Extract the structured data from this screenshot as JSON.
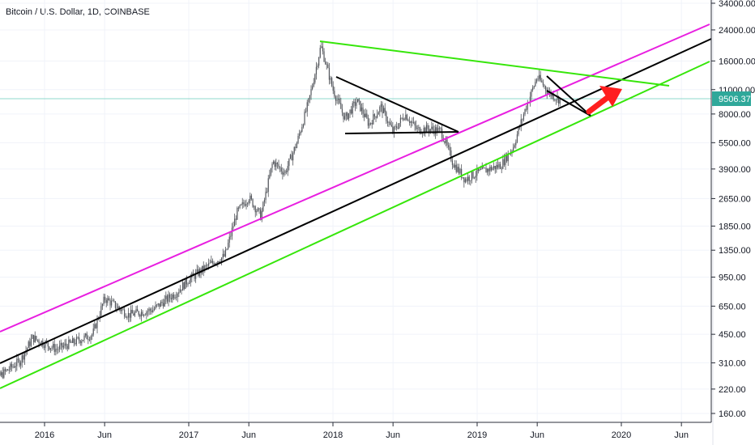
{
  "title": "Bitcoin / U.S. Dollar, 1D, COINBASE",
  "last_price": "9506.37",
  "colors": {
    "candles": "#53565c",
    "pink_channel": "#e81fe0",
    "black_midline": "#000000",
    "green_lines": "#36e60a",
    "arrow": "#ff1f1f",
    "price_line": "#8fd8cc",
    "price_badge": "#2fa89a"
  },
  "chart_data": {
    "type": "candlestick",
    "title": "Bitcoin / U.S. Dollar, 1D, COINBASE",
    "scale": "log",
    "y_ticks": [
      "34000.00",
      "24000.00",
      "16000.00",
      "11000.00",
      "8000.00",
      "5500.00",
      "3900.00",
      "2650.00",
      "1850.00",
      "1350.00",
      "950.00",
      "650.00",
      "450.00",
      "310.00",
      "220.00",
      "160.00"
    ],
    "x_ticks": [
      "2016",
      "Jun",
      "2017",
      "Jun",
      "2018",
      "Jun",
      "2019",
      "Jun",
      "2020",
      "Jun"
    ],
    "current_price": 9506.37,
    "price_path": [
      [
        "2015-08",
        225
      ],
      [
        "2015-11",
        320
      ],
      [
        "2015-12",
        430
      ],
      [
        "2016-02",
        370
      ],
      [
        "2016-05",
        450
      ],
      [
        "2016-06",
        720
      ],
      [
        "2016-08",
        580
      ],
      [
        "2016-10",
        620
      ],
      [
        "2016-12",
        780
      ],
      [
        "2017-01",
        920
      ],
      [
        "2017-03",
        1150
      ],
      [
        "2017-04",
        1250
      ],
      [
        "2017-05",
        2200
      ],
      [
        "2017-06",
        2700
      ],
      [
        "2017-07",
        2100
      ],
      [
        "2017-08",
        4300
      ],
      [
        "2017-09",
        3700
      ],
      [
        "2017-10",
        5500
      ],
      [
        "2017-11",
        9500
      ],
      [
        "2017-12",
        19500
      ],
      [
        "2018-01",
        11000
      ],
      [
        "2018-02",
        7500
      ],
      [
        "2018-03",
        9500
      ],
      [
        "2018-04",
        7000
      ],
      [
        "2018-05",
        8800
      ],
      [
        "2018-06",
        6300
      ],
      [
        "2018-07",
        8000
      ],
      [
        "2018-08",
        6500
      ],
      [
        "2018-09",
        6600
      ],
      [
        "2018-10",
        6400
      ],
      [
        "2018-11",
        4200
      ],
      [
        "2018-12",
        3400
      ],
      [
        "2019-01",
        3700
      ],
      [
        "2019-02",
        3900
      ],
      [
        "2019-03",
        4100
      ],
      [
        "2019-04",
        5200
      ],
      [
        "2019-05",
        8500
      ],
      [
        "2019-06",
        13000
      ],
      [
        "2019-07",
        10500
      ],
      [
        "2019-08",
        9500
      ]
    ]
  }
}
